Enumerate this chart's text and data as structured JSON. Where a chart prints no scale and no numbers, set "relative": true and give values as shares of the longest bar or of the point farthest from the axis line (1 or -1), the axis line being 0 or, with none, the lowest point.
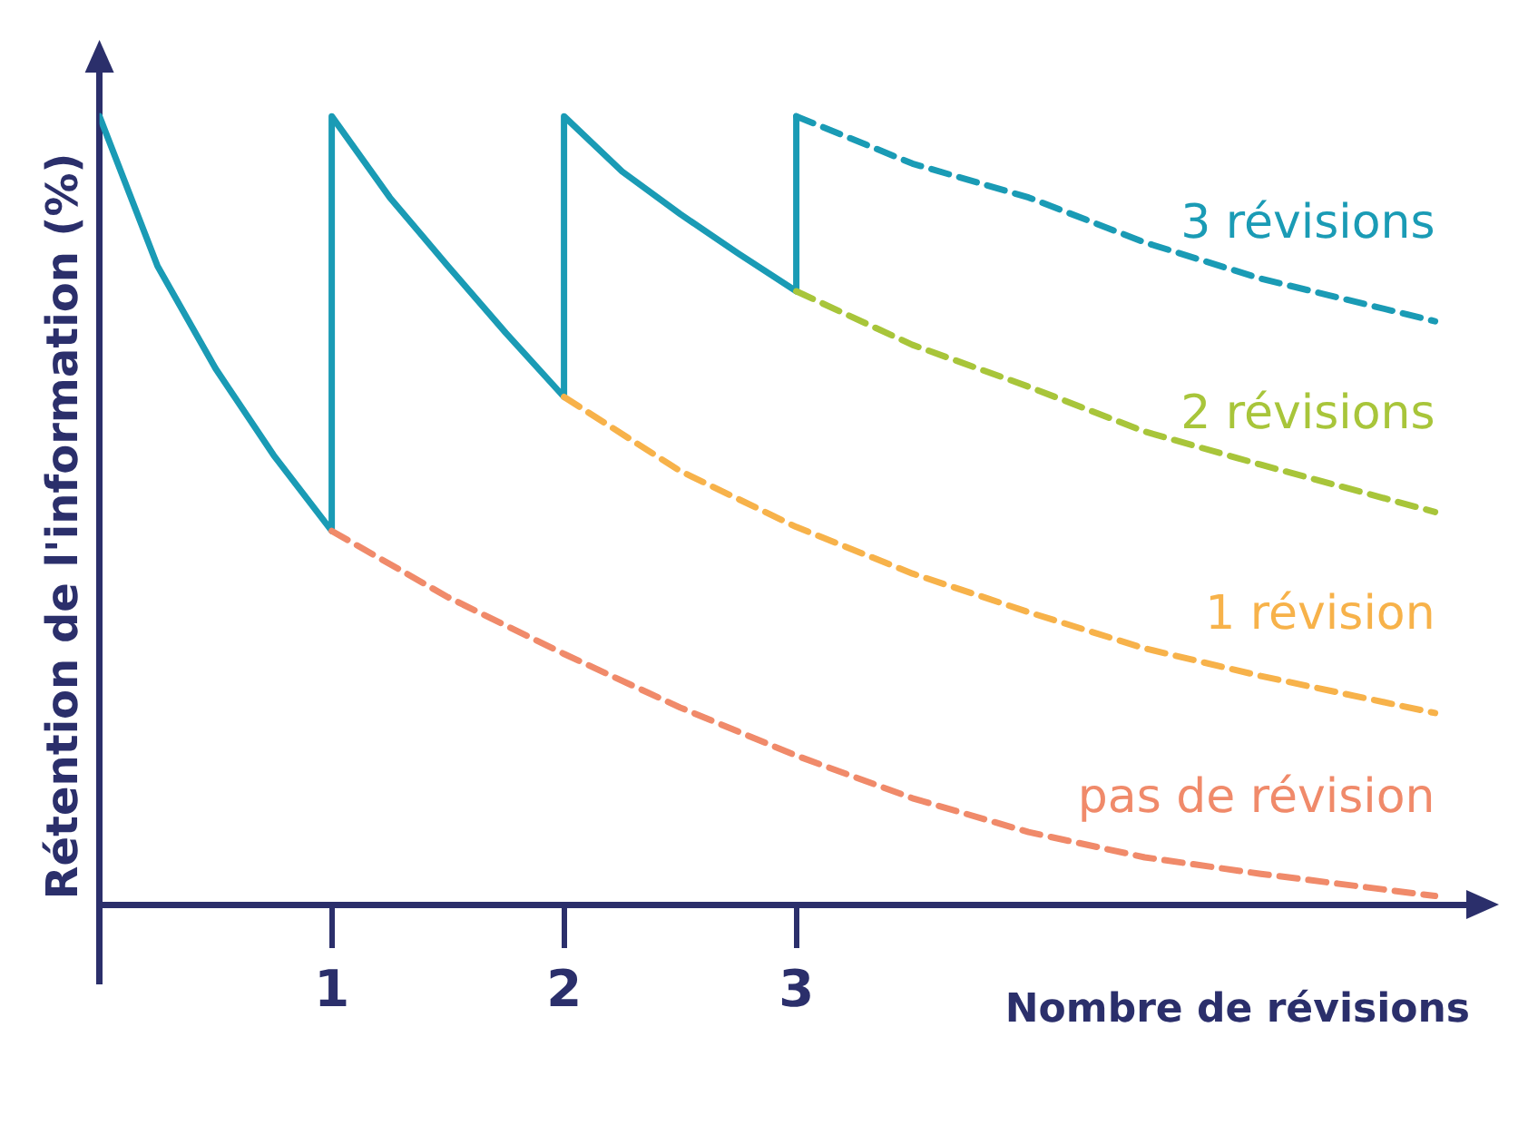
{
  "chart_data": {
    "type": "line",
    "relative": true,
    "xlabel": "Nombre de révisions",
    "ylabel": "Rétention de l'information (%)",
    "xlim": [
      0,
      5.9
    ],
    "xticks": [
      1,
      2,
      3
    ],
    "tick_labels": "x",
    "grid": false,
    "legend": false,
    "marker": "none",
    "series": [
      {
        "color": "#1a9bb5",
        "line_style": "solid",
        "x": [
          0,
          0.25,
          0.5,
          0.75,
          1,
          1,
          1.25,
          1.5,
          1.75,
          2,
          2,
          2.25,
          2.5,
          2.75,
          3,
          3
        ],
        "values": [
          1,
          0.81,
          0.68,
          0.57,
          0.474,
          1,
          0.897,
          0.81,
          0.725,
          0.644,
          1,
          0.93,
          0.876,
          0.826,
          0.778,
          1
        ]
      },
      {
        "name": "3 révisions",
        "color": "#1a9bb5",
        "line_style": "dashed",
        "x": [
          3,
          3.5,
          4,
          4.5,
          5,
          5.75
        ],
        "values": [
          1,
          0.94,
          0.897,
          0.84,
          0.794,
          0.74
        ]
      },
      {
        "name": "2 révisions",
        "color": "#a8c53a",
        "line_style": "dashed",
        "x": [
          3,
          3.5,
          4,
          4.5,
          5,
          5.75
        ],
        "values": [
          0.778,
          0.71,
          0.657,
          0.6,
          0.558,
          0.498
        ]
      },
      {
        "name": "1 révision",
        "color": "#f7b24a",
        "line_style": "dashed",
        "x": [
          2,
          2.5,
          3,
          3.5,
          4,
          4.5,
          5,
          5.75
        ],
        "values": [
          0.644,
          0.55,
          0.479,
          0.42,
          0.371,
          0.325,
          0.29,
          0.243
        ]
      },
      {
        "name": "pas de révision",
        "color": "#f08a6a",
        "line_style": "dashed",
        "x": [
          1,
          1.5,
          2,
          2.5,
          3,
          3.5,
          4,
          4.5,
          5,
          5.75
        ],
        "values": [
          0.474,
          0.39,
          0.318,
          0.25,
          0.189,
          0.135,
          0.092,
          0.06,
          0.039,
          0.011
        ]
      }
    ]
  }
}
